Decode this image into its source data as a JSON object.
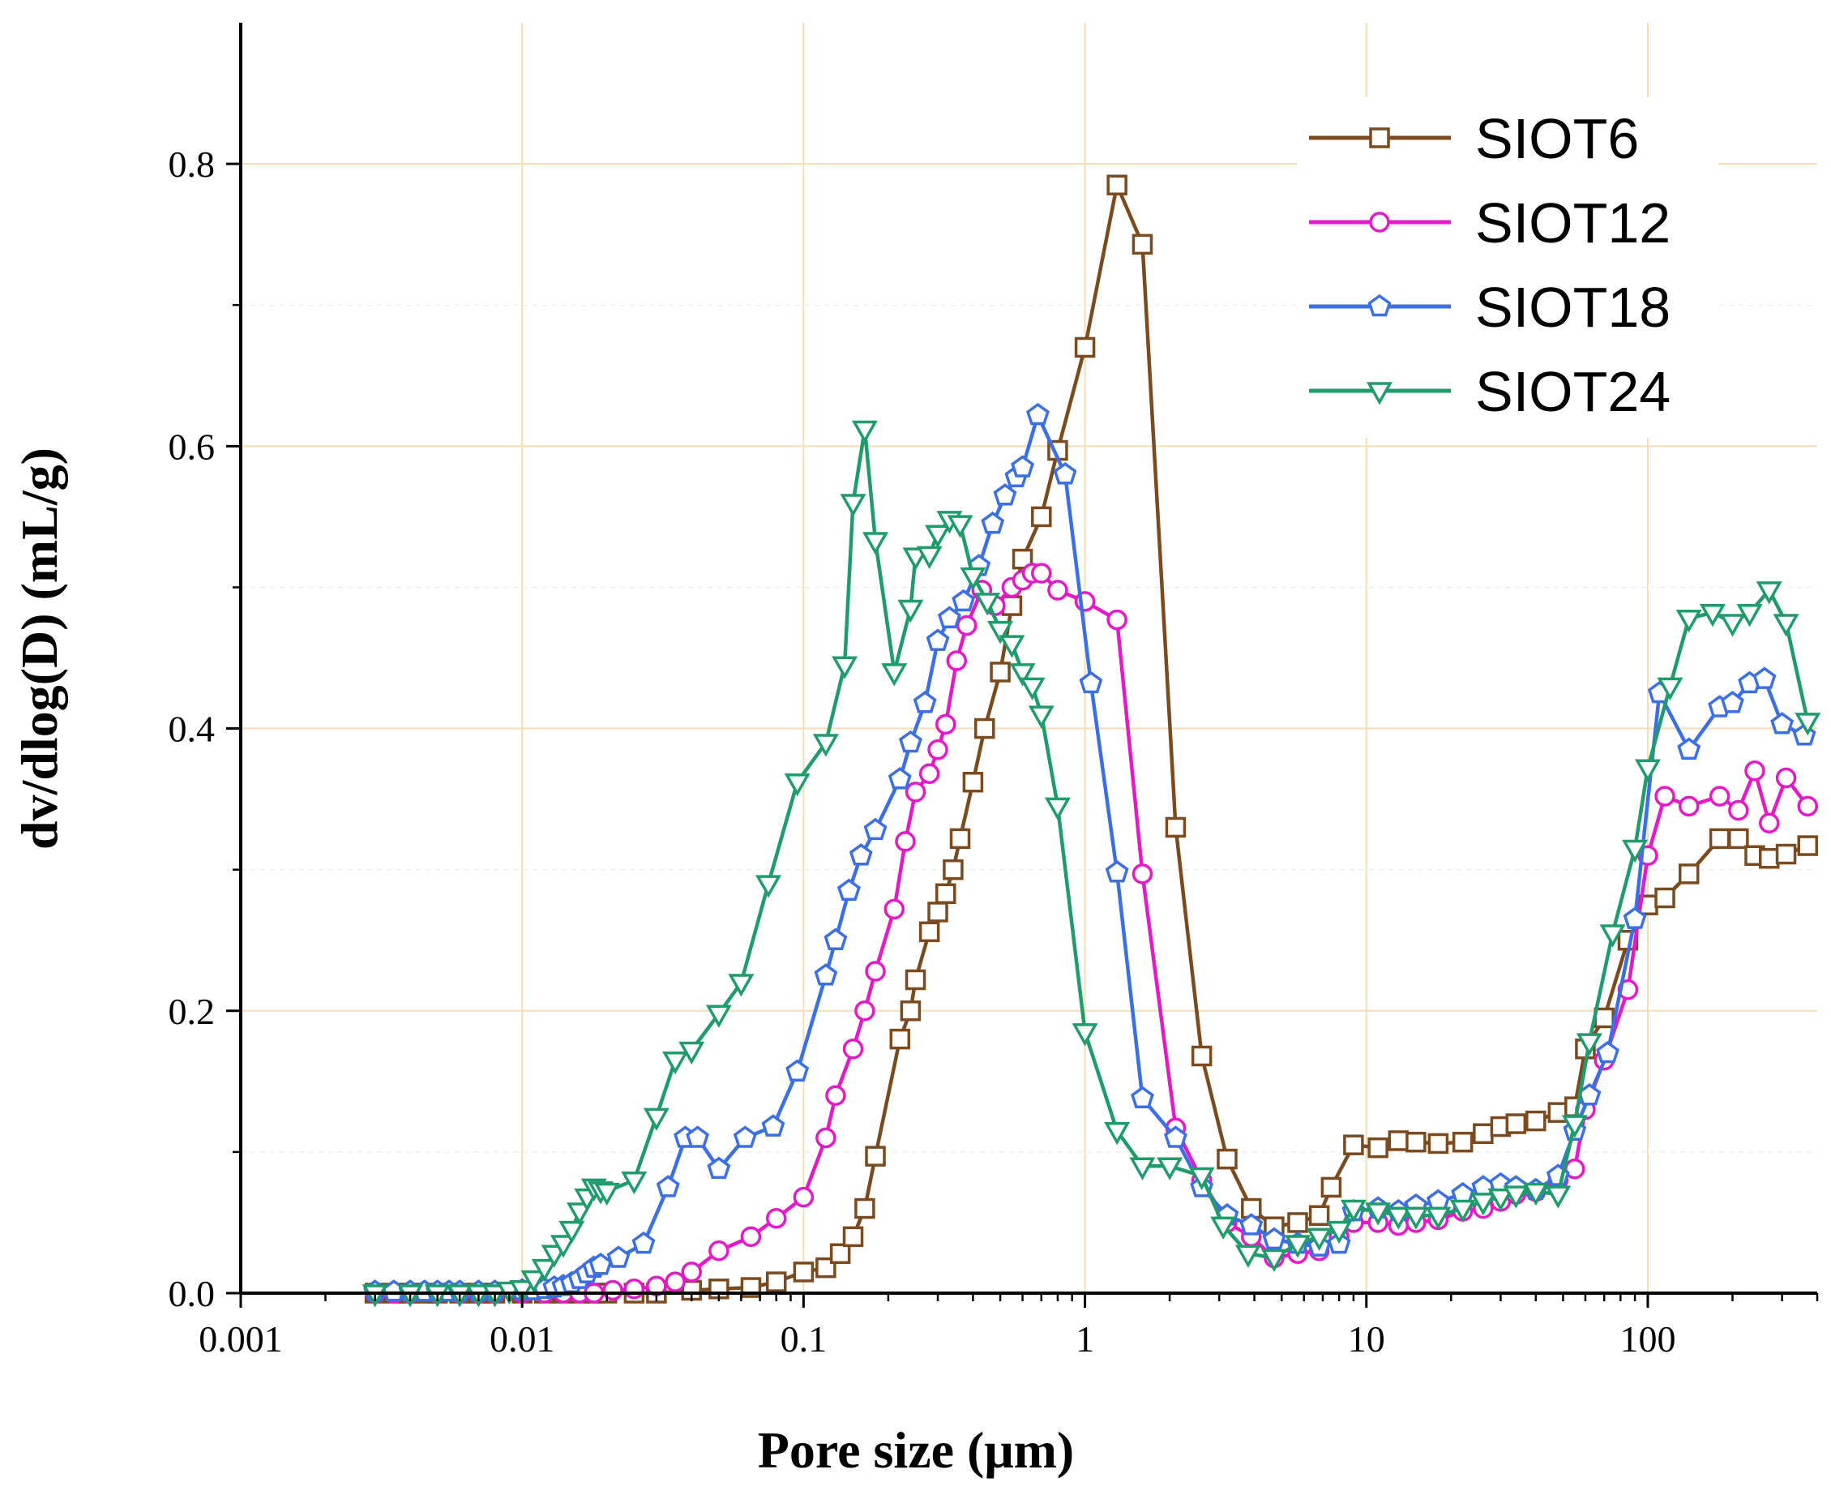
{
  "chart_data": {
    "type": "line",
    "title": "",
    "xlabel": "Pore size (μm)",
    "ylabel": "dv/dlog(D) (mL/g)",
    "xscale": "log",
    "xlim": [
      0.001,
      400
    ],
    "ylim": [
      0,
      0.9
    ],
    "xticks": [
      0.001,
      0.01,
      0.1,
      1,
      10,
      100
    ],
    "xtick_labels": [
      "0.001",
      "0.01",
      "0.1",
      "1",
      "10",
      "100"
    ],
    "yticks": [
      0,
      0.2,
      0.4,
      0.6,
      0.8
    ],
    "ytick_labels": [
      "0.0",
      "0.2",
      "0.4",
      "0.6",
      "0.8"
    ],
    "grid": true,
    "grid_color": "#f5deb3",
    "legend_position": "top-right",
    "series": [
      {
        "name": "SIOT6",
        "color": "#7b4a1e",
        "marker": "square",
        "x": [
          0.003,
          0.0035,
          0.004,
          0.0045,
          0.005,
          0.006,
          0.007,
          0.008,
          0.01,
          0.012,
          0.014,
          0.016,
          0.018,
          0.02,
          0.025,
          0.03,
          0.04,
          0.05,
          0.065,
          0.08,
          0.1,
          0.12,
          0.135,
          0.15,
          0.165,
          0.18,
          0.22,
          0.24,
          0.25,
          0.28,
          0.3,
          0.32,
          0.34,
          0.36,
          0.4,
          0.44,
          0.5,
          0.55,
          0.6,
          0.7,
          0.8,
          1.0,
          1.3,
          1.6,
          2.1,
          2.6,
          3.2,
          3.9,
          4.7,
          5.7,
          6.8,
          7.5,
          9,
          11,
          13,
          15,
          18,
          22,
          26,
          30,
          34,
          40,
          48,
          55,
          60,
          70,
          85,
          100,
          115,
          140,
          180,
          210,
          240,
          270,
          310,
          370
        ],
        "y": [
          0,
          0,
          0,
          0,
          0,
          0,
          0,
          0,
          0,
          0,
          0,
          0,
          0,
          0,
          0,
          0,
          0.002,
          0.003,
          0.004,
          0.008,
          0.015,
          0.018,
          0.028,
          0.04,
          0.06,
          0.097,
          0.18,
          0.2,
          0.222,
          0.256,
          0.27,
          0.283,
          0.3,
          0.322,
          0.362,
          0.4,
          0.44,
          0.487,
          0.52,
          0.55,
          0.597,
          0.67,
          0.785,
          0.743,
          0.33,
          0.168,
          0.095,
          0.06,
          0.047,
          0.05,
          0.055,
          0.075,
          0.105,
          0.103,
          0.108,
          0.107,
          0.106,
          0.107,
          0.113,
          0.118,
          0.12,
          0.122,
          0.128,
          0.132,
          0.173,
          0.195,
          0.25,
          0.275,
          0.28,
          0.297,
          0.322,
          0.322,
          0.31,
          0.308,
          0.311,
          0.317
        ]
      },
      {
        "name": "SIOT12",
        "color": "#e619c8",
        "marker": "circle",
        "x": [
          0.003,
          0.0035,
          0.004,
          0.005,
          0.006,
          0.007,
          0.008,
          0.01,
          0.012,
          0.014,
          0.016,
          0.018,
          0.021,
          0.025,
          0.03,
          0.035,
          0.04,
          0.05,
          0.065,
          0.08,
          0.1,
          0.12,
          0.13,
          0.15,
          0.165,
          0.18,
          0.21,
          0.23,
          0.25,
          0.28,
          0.3,
          0.32,
          0.35,
          0.38,
          0.43,
          0.48,
          0.55,
          0.6,
          0.65,
          0.7,
          0.8,
          1.0,
          1.3,
          1.6,
          2.1,
          2.6,
          3.2,
          3.9,
          4.7,
          5.7,
          6.8,
          8,
          9,
          11,
          13,
          15,
          18,
          22,
          26,
          30,
          34,
          40,
          48,
          55,
          60,
          70,
          85,
          100,
          115,
          140,
          180,
          210,
          240,
          270,
          310,
          370
        ],
        "y": [
          0,
          0,
          0,
          0,
          0,
          0,
          0,
          0,
          0,
          0,
          0,
          0,
          0.002,
          0.003,
          0.005,
          0.008,
          0.015,
          0.03,
          0.04,
          0.053,
          0.068,
          0.11,
          0.14,
          0.173,
          0.2,
          0.228,
          0.272,
          0.32,
          0.355,
          0.368,
          0.385,
          0.403,
          0.448,
          0.473,
          0.498,
          0.487,
          0.5,
          0.505,
          0.51,
          0.51,
          0.498,
          0.49,
          0.477,
          0.297,
          0.117,
          0.08,
          0.05,
          0.04,
          0.025,
          0.028,
          0.03,
          0.04,
          0.05,
          0.05,
          0.048,
          0.05,
          0.052,
          0.058,
          0.06,
          0.065,
          0.07,
          0.072,
          0.08,
          0.088,
          0.13,
          0.165,
          0.215,
          0.31,
          0.352,
          0.345,
          0.352,
          0.342,
          0.37,
          0.333,
          0.365,
          0.345
        ]
      },
      {
        "name": "SIOT18",
        "color": "#3b6fe8",
        "marker": "pentagon",
        "x": [
          0.003,
          0.0035,
          0.004,
          0.0045,
          0.005,
          0.0055,
          0.006,
          0.007,
          0.008,
          0.01,
          0.011,
          0.012,
          0.013,
          0.014,
          0.015,
          0.016,
          0.017,
          0.018,
          0.019,
          0.022,
          0.027,
          0.033,
          0.038,
          0.042,
          0.05,
          0.062,
          0.078,
          0.095,
          0.12,
          0.13,
          0.145,
          0.16,
          0.18,
          0.22,
          0.24,
          0.27,
          0.3,
          0.33,
          0.37,
          0.42,
          0.47,
          0.52,
          0.57,
          0.6,
          0.68,
          0.85,
          1.05,
          1.3,
          1.6,
          2.1,
          2.6,
          3.2,
          3.9,
          4.7,
          5.7,
          6.8,
          8,
          9,
          11,
          13,
          15,
          18,
          22,
          26,
          30,
          34,
          40,
          48,
          55,
          62,
          72,
          90,
          110,
          140,
          180,
          200,
          230,
          260,
          300,
          360
        ],
        "y": [
          0.001,
          0.001,
          0.001,
          0.001,
          0.001,
          0.001,
          0.001,
          0.001,
          0.001,
          0.002,
          0.002,
          0.003,
          0.004,
          0.005,
          0.007,
          0.01,
          0.014,
          0.018,
          0.02,
          0.025,
          0.035,
          0.075,
          0.11,
          0.11,
          0.088,
          0.11,
          0.118,
          0.157,
          0.225,
          0.25,
          0.285,
          0.31,
          0.328,
          0.364,
          0.39,
          0.418,
          0.462,
          0.478,
          0.49,
          0.515,
          0.545,
          0.565,
          0.578,
          0.585,
          0.622,
          0.58,
          0.432,
          0.298,
          0.138,
          0.11,
          0.075,
          0.055,
          0.048,
          0.038,
          0.035,
          0.033,
          0.035,
          0.058,
          0.06,
          0.058,
          0.062,
          0.065,
          0.07,
          0.075,
          0.077,
          0.075,
          0.073,
          0.083,
          0.115,
          0.14,
          0.17,
          0.265,
          0.425,
          0.385,
          0.415,
          0.418,
          0.432,
          0.435,
          0.403,
          0.395
        ]
      },
      {
        "name": "SIOT24",
        "color": "#1e9c6c",
        "marker": "triangle-down",
        "x": [
          0.003,
          0.004,
          0.005,
          0.006,
          0.007,
          0.008,
          0.009,
          0.01,
          0.011,
          0.012,
          0.013,
          0.014,
          0.015,
          0.016,
          0.017,
          0.018,
          0.019,
          0.02,
          0.025,
          0.03,
          0.035,
          0.04,
          0.05,
          0.06,
          0.075,
          0.095,
          0.12,
          0.14,
          0.15,
          0.165,
          0.18,
          0.21,
          0.24,
          0.25,
          0.28,
          0.3,
          0.33,
          0.36,
          0.4,
          0.45,
          0.5,
          0.55,
          0.6,
          0.65,
          0.7,
          0.8,
          1.0,
          1.3,
          1.6,
          2.0,
          2.6,
          3.1,
          3.8,
          4.7,
          5.7,
          6.8,
          8,
          9,
          11,
          13,
          15,
          18,
          22,
          26,
          30,
          34,
          40,
          48,
          55,
          62,
          75,
          90,
          100,
          120,
          140,
          170,
          200,
          230,
          270,
          310,
          370
        ],
        "y": [
          0,
          0,
          0,
          0,
          0,
          0,
          0.002,
          0.003,
          0.01,
          0.018,
          0.028,
          0.035,
          0.045,
          0.058,
          0.068,
          0.075,
          0.073,
          0.072,
          0.08,
          0.125,
          0.165,
          0.172,
          0.198,
          0.22,
          0.29,
          0.362,
          0.39,
          0.445,
          0.56,
          0.612,
          0.533,
          0.44,
          0.485,
          0.522,
          0.523,
          0.538,
          0.548,
          0.545,
          0.508,
          0.49,
          0.47,
          0.46,
          0.44,
          0.43,
          0.41,
          0.345,
          0.185,
          0.115,
          0.09,
          0.09,
          0.083,
          0.048,
          0.028,
          0.025,
          0.035,
          0.04,
          0.045,
          0.06,
          0.058,
          0.055,
          0.055,
          0.055,
          0.06,
          0.065,
          0.068,
          0.07,
          0.072,
          0.07,
          0.12,
          0.178,
          0.255,
          0.315,
          0.372,
          0.43,
          0.478,
          0.482,
          0.475,
          0.482,
          0.498,
          0.475,
          0.405
        ]
      }
    ]
  }
}
